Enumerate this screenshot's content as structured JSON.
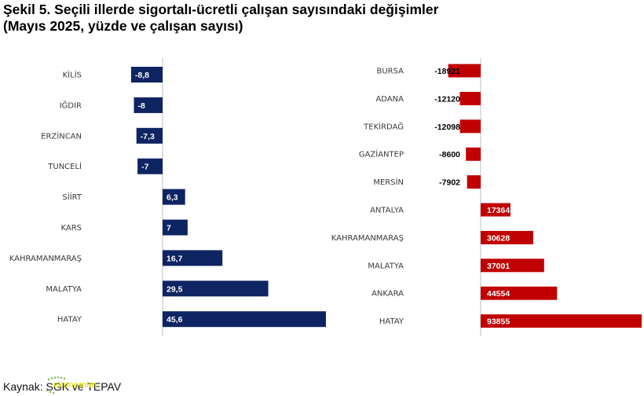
{
  "title_line1": "Şekil 5. Seçili illerde sigortalı-ücretli çalışan sayısındaki değişimler",
  "title_line2": "(Mayıs 2025, yüzde ve çalışan sayısı)",
  "source": "Kaynak: SGK ve TEPAV",
  "logo_text": "ekonomim",
  "colors": {
    "left_bars": "#0f2462",
    "right_bars": "#c00000",
    "axis": "#bfbfbf"
  },
  "chart_data": [
    {
      "type": "bar",
      "orientation": "horizontal",
      "categories": [
        "KİLİS",
        "IĞDIR",
        "ERZİNCAN",
        "TUNCELİ",
        "SİİRT",
        "KARS",
        "KAHRAMANMARAŞ",
        "MALATYA",
        "HATAY"
      ],
      "values": [
        -8.8,
        -8,
        -7.3,
        -7,
        6.3,
        7,
        16.7,
        29.5,
        45.6
      ],
      "value_labels": [
        "-8,8",
        "-8",
        "-7,3",
        "-7",
        "6,3",
        "7",
        "16,7",
        "29,5",
        "45,6"
      ],
      "xlim": [
        -45.6,
        45.6
      ],
      "grid": false
    },
    {
      "type": "bar",
      "orientation": "horizontal",
      "categories": [
        "BURSA",
        "ADANA",
        "TEKİRDAĞ",
        "GAZİANTEP",
        "MERSİN",
        "ANTALYA",
        "KAHRAMANMARAŞ",
        "MALATYA",
        "ANKARA",
        "HATAY"
      ],
      "values": [
        -18921,
        -12120,
        -12098,
        -8600,
        -7902,
        17364,
        30628,
        37001,
        44554,
        93855
      ],
      "value_labels": [
        "-18921",
        "-12120",
        "-12098",
        "-8600",
        "-7902",
        "17364",
        "30628",
        "37001",
        "44554",
        "93855"
      ],
      "xlim": [
        -93855,
        93855
      ],
      "grid": false
    }
  ]
}
